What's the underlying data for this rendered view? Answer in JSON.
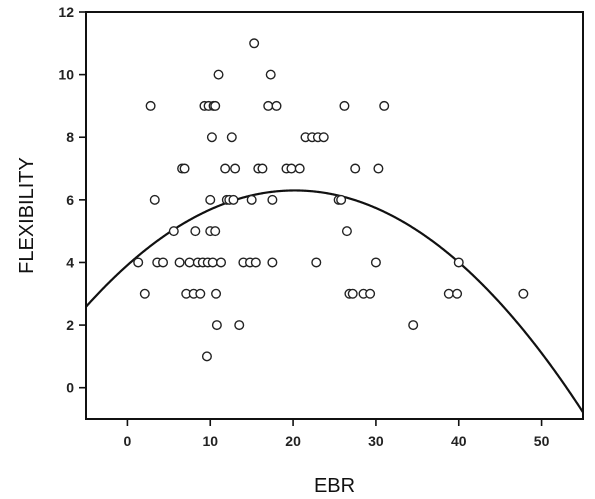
{
  "chart_data": {
    "type": "scatter",
    "title": "",
    "xlabel": "EBR",
    "ylabel": "FLEXIBILITY",
    "xlim": [
      -5,
      55
    ],
    "ylim": [
      -1,
      12
    ],
    "x_ticks": [
      0,
      10,
      20,
      30,
      40,
      50
    ],
    "y_ticks": [
      0,
      2,
      4,
      6,
      8,
      10,
      12
    ],
    "grid": false,
    "legend": "none",
    "marker": "open-circle",
    "colors": {
      "marker": "#222222",
      "curve": "#111111",
      "axis": "#111111"
    },
    "series": [
      {
        "points": [
          [
            1.3,
            4
          ],
          [
            2.1,
            3
          ],
          [
            2.8,
            9
          ],
          [
            3.3,
            6
          ],
          [
            3.6,
            4
          ],
          [
            4.3,
            4
          ],
          [
            5.6,
            5
          ],
          [
            6.3,
            4
          ],
          [
            6.6,
            7
          ],
          [
            6.9,
            7
          ],
          [
            7.1,
            3
          ],
          [
            7.5,
            4
          ],
          [
            8.0,
            3
          ],
          [
            8.2,
            5
          ],
          [
            8.5,
            4
          ],
          [
            8.8,
            3
          ],
          [
            9.1,
            4
          ],
          [
            9.3,
            9
          ],
          [
            9.6,
            1
          ],
          [
            9.7,
            4
          ],
          [
            9.8,
            9
          ],
          [
            10.0,
            6
          ],
          [
            10.0,
            5
          ],
          [
            10.2,
            8
          ],
          [
            10.3,
            4
          ],
          [
            10.4,
            9
          ],
          [
            10.6,
            9
          ],
          [
            10.6,
            5
          ],
          [
            10.7,
            3
          ],
          [
            10.8,
            2
          ],
          [
            11.0,
            10
          ],
          [
            11.3,
            4
          ],
          [
            11.8,
            7
          ],
          [
            12.0,
            6
          ],
          [
            12.3,
            6
          ],
          [
            12.6,
            8
          ],
          [
            12.8,
            6
          ],
          [
            13.0,
            7
          ],
          [
            13.5,
            2
          ],
          [
            14.0,
            4
          ],
          [
            14.8,
            4
          ],
          [
            15.0,
            6
          ],
          [
            15.3,
            11
          ],
          [
            15.5,
            4
          ],
          [
            15.8,
            7
          ],
          [
            16.3,
            7
          ],
          [
            17.0,
            9
          ],
          [
            17.3,
            10
          ],
          [
            17.5,
            6
          ],
          [
            17.5,
            4
          ],
          [
            18.0,
            9
          ],
          [
            19.2,
            7
          ],
          [
            19.8,
            7
          ],
          [
            20.8,
            7
          ],
          [
            21.5,
            8
          ],
          [
            22.3,
            8
          ],
          [
            22.8,
            4
          ],
          [
            23.0,
            8
          ],
          [
            23.7,
            8
          ],
          [
            25.5,
            6
          ],
          [
            25.8,
            6
          ],
          [
            26.2,
            9
          ],
          [
            26.5,
            5
          ],
          [
            26.8,
            3
          ],
          [
            27.2,
            3
          ],
          [
            27.5,
            7
          ],
          [
            28.5,
            3
          ],
          [
            29.3,
            3
          ],
          [
            30.0,
            4
          ],
          [
            30.3,
            7
          ],
          [
            31.0,
            9
          ],
          [
            34.5,
            2
          ],
          [
            38.8,
            3
          ],
          [
            39.8,
            3
          ],
          [
            40.0,
            4
          ],
          [
            47.8,
            3
          ]
        ]
      }
    ],
    "fit_curve": {
      "type": "quadratic",
      "vertex": [
        20.2,
        6.3
      ],
      "coefficient": -0.00585
    }
  }
}
